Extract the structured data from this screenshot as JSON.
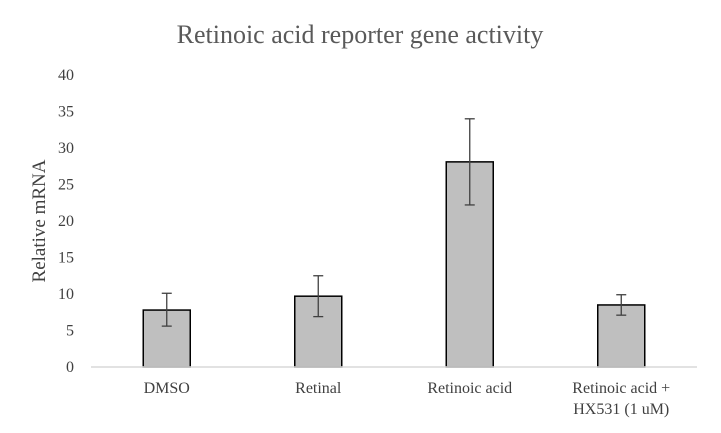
{
  "chart_data": {
    "type": "bar",
    "title": "Retinoic acid reporter gene activity",
    "xlabel": "",
    "ylabel": "Relative mRNA",
    "ylim": [
      0,
      40
    ],
    "yticks": [
      0,
      5,
      10,
      15,
      20,
      25,
      30,
      35,
      40
    ],
    "grid": false,
    "categories": [
      [
        "DMSO"
      ],
      [
        "Retinal"
      ],
      [
        "Retinoic acid"
      ],
      [
        "Retinoic acid +",
        "HX531 (1 uM)"
      ]
    ],
    "values": [
      7.8,
      9.7,
      28.1,
      8.5
    ],
    "error_low": [
      5.6,
      6.9,
      22.2,
      7.1
    ],
    "error_high": [
      10.1,
      12.5,
      34.0,
      9.9
    ],
    "colors": {
      "bar_fill": "#bfbfbf",
      "bar_stroke": "#000000",
      "error_bar": "#404040",
      "axis": "#d9d9d9",
      "title": "#595959",
      "text": "#404040"
    }
  }
}
